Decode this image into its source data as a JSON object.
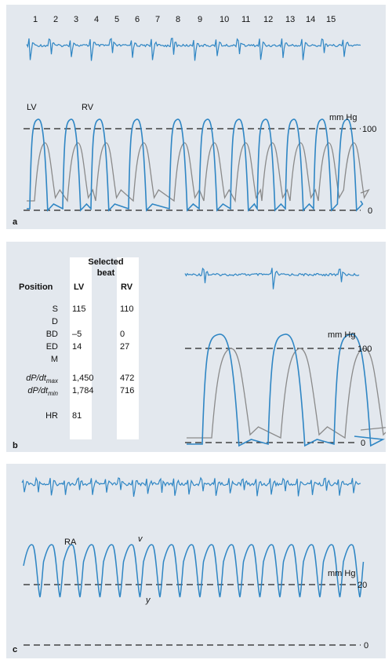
{
  "panel_a": {
    "letter": "a",
    "beat_numbers": [
      "1",
      "2",
      "3",
      "4",
      "5",
      "6",
      "7",
      "8",
      "9",
      "10",
      "11",
      "12",
      "13",
      "14",
      "15"
    ],
    "lv_label": "LV",
    "rv_label": "RV",
    "unit": "mm Hg",
    "ref_high": "100",
    "ref_low": "0"
  },
  "panel_b": {
    "letter": "b",
    "header_line1": "Selected",
    "header_line2": "beat",
    "position_label": "Position",
    "col_lv": "LV",
    "col_rv": "RV",
    "rows": [
      {
        "label": "S",
        "lv": "115",
        "rv": "110"
      },
      {
        "label": "D",
        "lv": "",
        "rv": ""
      },
      {
        "label": "BD",
        "lv": "–5",
        "rv": "0"
      },
      {
        "label": "ED",
        "lv": "14",
        "rv": "27"
      },
      {
        "label": "M",
        "lv": "",
        "rv": ""
      }
    ],
    "dp_max": {
      "label": "dP/dt",
      "sub": "max",
      "lv": "1,450",
      "rv": "472"
    },
    "dp_min": {
      "label": "dP/dt",
      "sub": "min",
      "lv": "1,784",
      "rv": "716"
    },
    "hr": {
      "label": "HR",
      "lv": "81"
    },
    "unit": "mm Hg",
    "ref_high": "100",
    "ref_low": "0"
  },
  "panel_c": {
    "letter": "c",
    "ra_label": "RA",
    "v_label": "v",
    "y_label": "y",
    "unit": "mm Hg",
    "ref_high": "20",
    "ref_low": "0"
  },
  "colors": {
    "trace_blue": "#2f86c4",
    "trace_gray": "#8a8a8a",
    "panel_bg": "#e3e8ee"
  }
}
